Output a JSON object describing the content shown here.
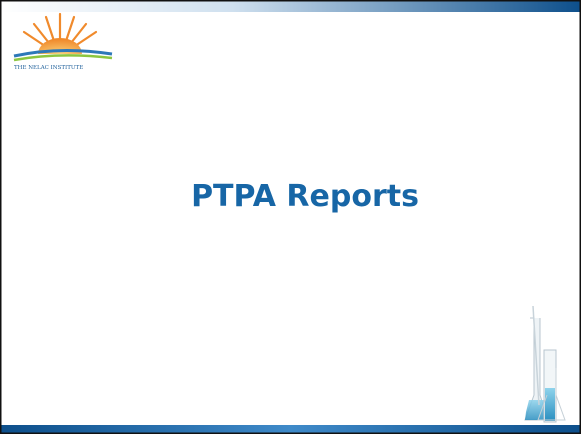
{
  "logo": {
    "text": "THE NELAC INSTITUTE"
  },
  "slide": {
    "title": "PTPA Reports"
  }
}
